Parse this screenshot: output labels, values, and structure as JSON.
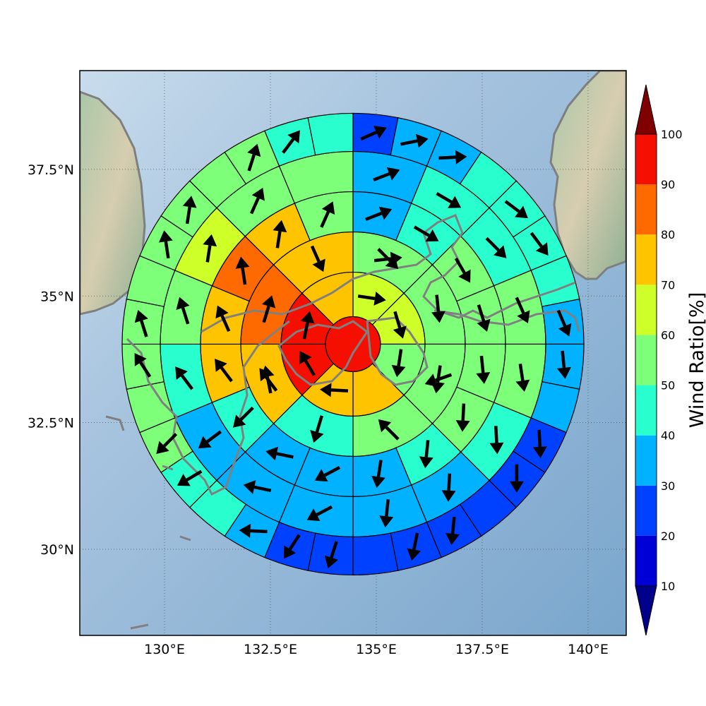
{
  "chart_data": {
    "type": "heatmap",
    "subtype": "polar-sector-map-with-wind-arrows",
    "map": {
      "lon_range": [
        128.0,
        140.9
      ],
      "lat_range": [
        28.3,
        39.45
      ],
      "grid": true,
      "background": "shaded-relief terrain with sea and gray coastlines",
      "x_ticks": [
        {
          "value": 130.0,
          "label": "130°E"
        },
        {
          "value": 132.5,
          "label": "132.5°E"
        },
        {
          "value": 135.0,
          "label": "135°E"
        },
        {
          "value": 137.5,
          "label": "137.5°E"
        },
        {
          "value": 140.0,
          "label": "140°E"
        }
      ],
      "y_ticks": [
        {
          "value": 30.0,
          "label": "30°N"
        },
        {
          "value": 32.5,
          "label": "32.5°N"
        },
        {
          "value": 35.0,
          "label": "35°N"
        },
        {
          "value": 37.5,
          "label": "37.5°N"
        }
      ]
    },
    "polar_grid": {
      "center": {
        "lon": 134.45,
        "lat": 34.05
      },
      "ring_edges_deg_lon": [
        0.65,
        1.7,
        2.65,
        3.6,
        4.55,
        5.45
      ],
      "sector_counts": [
        1,
        8,
        8,
        16,
        16,
        32
      ],
      "sector_order": "clockwise from north"
    },
    "rings": [
      {
        "values": [
          95
        ],
        "arrows": []
      },
      {
        "values": [
          65,
          62,
          57,
          72,
          72,
          95,
          95,
          78
        ],
        "arrows": [
          {
            "u": 1.0,
            "v": -0.15
          },
          {
            "u": 0.3,
            "v": -1.0
          },
          {
            "u": -0.15,
            "v": -1.0
          },
          {
            "u": -1.0,
            "v": 0.05
          },
          {
            "u": -0.5,
            "v": 0.85
          },
          {
            "u": 0.2,
            "v": 1.0
          }
        ]
      },
      {
        "values": [
          57,
          57,
          57,
          53,
          48,
          72,
          88,
          72
        ],
        "arrows": [
          {
            "u": 0.9,
            "v": 0.1
          },
          {
            "u": 0.7,
            "v": -0.7
          },
          {
            "u": 0.1,
            "v": -1.0
          },
          {
            "u": -0.15,
            "v": -1.0
          },
          {
            "u": -0.85,
            "v": -0.3
          },
          {
            "u": -0.7,
            "v": 0.7
          },
          {
            "u": -0.3,
            "v": -1.0
          },
          {
            "u": -0.6,
            "v": 0.8
          },
          {
            "u": -0.2,
            "v": 1.0
          },
          {
            "u": 0.3,
            "v": 1.0
          },
          {
            "u": 0.4,
            "v": -0.9
          }
        ]
      },
      {
        "values": [
          35,
          45,
          55,
          53,
          55,
          55,
          48,
          35,
          35,
          35,
          48,
          72,
          78,
          82,
          72,
          55
        ],
        "arrows": [
          {
            "u": 0.9,
            "v": 0.35
          },
          {
            "u": 0.85,
            "v": -0.5
          },
          {
            "u": 0.5,
            "v": -0.85
          },
          {
            "u": 0.3,
            "v": -0.95
          },
          {
            "u": 0.1,
            "v": -1.0
          },
          {
            "u": -0.05,
            "v": -1.0
          },
          {
            "u": -0.1,
            "v": -1.0
          },
          {
            "u": -0.15,
            "v": -1.0
          },
          {
            "u": -0.85,
            "v": -0.45
          },
          {
            "u": -0.95,
            "v": 0.2
          },
          {
            "u": -0.7,
            "v": -0.7
          },
          {
            "u": -0.6,
            "v": 0.8
          },
          {
            "u": -0.4,
            "v": 0.9
          },
          {
            "u": -0.15,
            "v": 1.0
          },
          {
            "u": 0.15,
            "v": 1.0
          },
          {
            "u": 0.4,
            "v": 0.9
          }
        ]
      },
      {
        "values": [
          35,
          45,
          42,
          55,
          55,
          48,
          35,
          35,
          35,
          35,
          35,
          45,
          55,
          62,
          55,
          55
        ],
        "arrows": [
          {
            "u": 0.9,
            "v": 0.35
          },
          {
            "u": 0.85,
            "v": -0.5
          },
          {
            "u": 0.7,
            "v": -0.7
          },
          {
            "u": 0.4,
            "v": -0.9
          },
          {
            "u": 0.15,
            "v": -1.0
          },
          {
            "u": 0.05,
            "v": -1.0
          },
          {
            "u": -0.05,
            "v": -1.0
          },
          {
            "u": -0.1,
            "v": -1.0
          },
          {
            "u": -0.85,
            "v": -0.45
          },
          {
            "u": -0.95,
            "v": 0.2
          },
          {
            "u": -0.8,
            "v": -0.6
          },
          {
            "u": -0.6,
            "v": 0.8
          },
          {
            "u": -0.3,
            "v": 0.95
          },
          {
            "u": 0.15,
            "v": 1.0
          },
          {
            "u": 0.4,
            "v": 0.9
          }
        ]
      },
      {
        "values": [
          25,
          35,
          35,
          45,
          45,
          45,
          45,
          35,
          35,
          35,
          25,
          25,
          25,
          25,
          25,
          25,
          25,
          25,
          35,
          45,
          45,
          55,
          55,
          55,
          55,
          55,
          55,
          55,
          55,
          55,
          45,
          45
        ],
        "arrows": [
          {
            "u": 0.9,
            "v": 0.4
          },
          {
            "u": 1.0,
            "v": 0.2
          },
          {
            "u": 1.0,
            "v": 0.05
          },
          {
            "u": 0.8,
            "v": -0.6
          },
          {
            "u": 0.6,
            "v": -0.8
          },
          {
            "u": 0.4,
            "v": -0.95
          },
          {
            "u": 0.1,
            "v": -1.0
          },
          {
            "u": 0.05,
            "v": -1.0
          },
          {
            "u": 0.0,
            "v": -1.0
          },
          {
            "u": -0.1,
            "v": -1.0
          },
          {
            "u": -0.2,
            "v": -1.0
          },
          {
            "u": -0.3,
            "v": -0.95
          },
          {
            "u": -0.55,
            "v": -0.85
          },
          {
            "u": -1.0,
            "v": 0.05
          },
          {
            "u": -0.85,
            "v": -0.5
          },
          {
            "u": -0.7,
            "v": -0.7
          },
          {
            "u": -0.55,
            "v": 0.85
          },
          {
            "u": -0.3,
            "v": 0.95
          },
          {
            "u": -0.15,
            "v": 1.0
          },
          {
            "u": 0.15,
            "v": 1.0
          },
          {
            "u": 0.3,
            "v": 0.95
          },
          {
            "u": 0.6,
            "v": 0.8
          }
        ]
      }
    ],
    "colorbar": {
      "label": "Wind Ratio[%]",
      "ticks": [
        10,
        20,
        30,
        40,
        50,
        60,
        70,
        80,
        90,
        100
      ],
      "range": [
        10,
        100
      ],
      "extend": "both",
      "colormap": "jet",
      "under_color": "#00008b",
      "over_color": "#800000",
      "bins": [
        {
          "min": 10,
          "max": 20,
          "color": "#0000d6"
        },
        {
          "min": 20,
          "max": 30,
          "color": "#0040ff"
        },
        {
          "min": 30,
          "max": 40,
          "color": "#00b2ff"
        },
        {
          "min": 40,
          "max": 50,
          "color": "#29ffce"
        },
        {
          "min": 50,
          "max": 60,
          "color": "#7dff7a"
        },
        {
          "min": 60,
          "max": 70,
          "color": "#ceff29"
        },
        {
          "min": 70,
          "max": 80,
          "color": "#ffc400"
        },
        {
          "min": 80,
          "max": 90,
          "color": "#ff6a00"
        },
        {
          "min": 90,
          "max": 100,
          "color": "#f50f00"
        }
      ]
    }
  }
}
